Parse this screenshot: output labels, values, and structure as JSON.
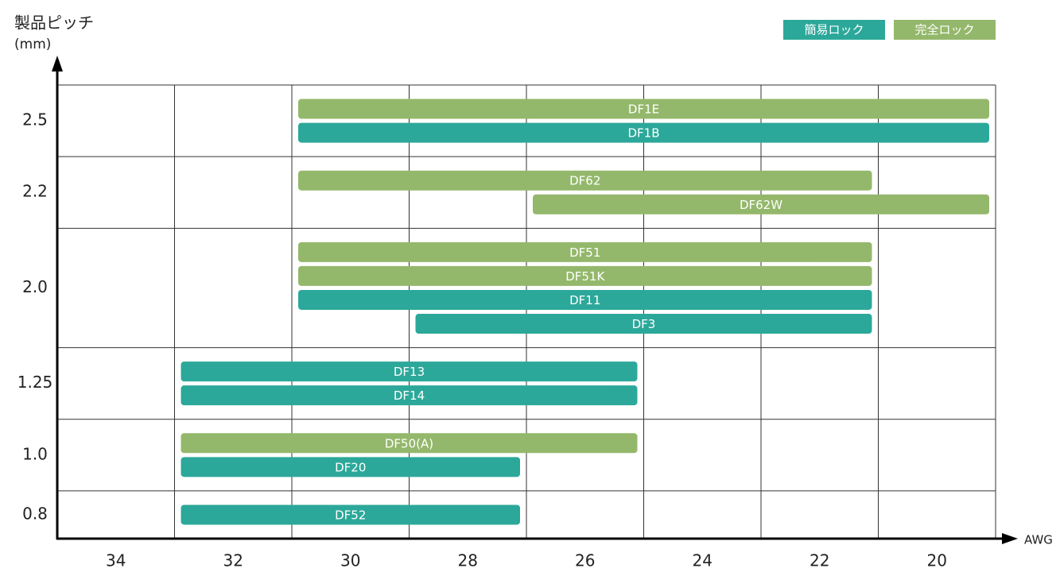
{
  "chart_data": {
    "type": "range-bar",
    "y_label": "製品ピッチ",
    "y_unit": "(mm)",
    "x_label": "AWG",
    "xlim": [
      35,
      19
    ],
    "xticks": [
      34,
      32,
      30,
      28,
      26,
      24,
      22,
      20
    ],
    "xgrid": [
      33,
      31,
      29,
      27,
      25,
      23,
      21
    ],
    "categories": [
      "2.5",
      "2.2",
      "2.0",
      "1.25",
      "1.0",
      "0.8"
    ],
    "series": [
      {
        "name": "簡易ロック",
        "color": "#2ca89a"
      },
      {
        "name": "完全ロック",
        "color": "#94b86b"
      }
    ],
    "legend": "top-right",
    "bars": [
      {
        "label": "DF1E",
        "category": 0,
        "series": 1,
        "values": [
          31,
          19
        ]
      },
      {
        "label": "DF1B",
        "category": 0,
        "series": 0,
        "values": [
          31,
          19
        ]
      },
      {
        "label": "DF62",
        "category": 1,
        "series": 1,
        "values": [
          31,
          21
        ]
      },
      {
        "label": "DF62W",
        "category": 1,
        "series": 1,
        "values": [
          27,
          19
        ]
      },
      {
        "label": "DF51",
        "category": 2,
        "series": 1,
        "values": [
          31,
          21
        ]
      },
      {
        "label": "DF51K",
        "category": 2,
        "series": 1,
        "values": [
          31,
          21
        ]
      },
      {
        "label": "DF11",
        "category": 2,
        "series": 0,
        "values": [
          31,
          21
        ]
      },
      {
        "label": "DF3",
        "category": 2,
        "series": 0,
        "values": [
          29,
          21
        ]
      },
      {
        "label": "DF13",
        "category": 3,
        "series": 0,
        "values": [
          33,
          25
        ]
      },
      {
        "label": "DF14",
        "category": 3,
        "series": 0,
        "values": [
          33,
          25
        ]
      },
      {
        "label": "DF50(A)",
        "category": 4,
        "series": 1,
        "values": [
          33,
          25
        ]
      },
      {
        "label": "DF20",
        "category": 4,
        "series": 0,
        "values": [
          33,
          27
        ]
      },
      {
        "label": "DF52",
        "category": 5,
        "series": 0,
        "values": [
          33,
          27
        ]
      }
    ]
  }
}
